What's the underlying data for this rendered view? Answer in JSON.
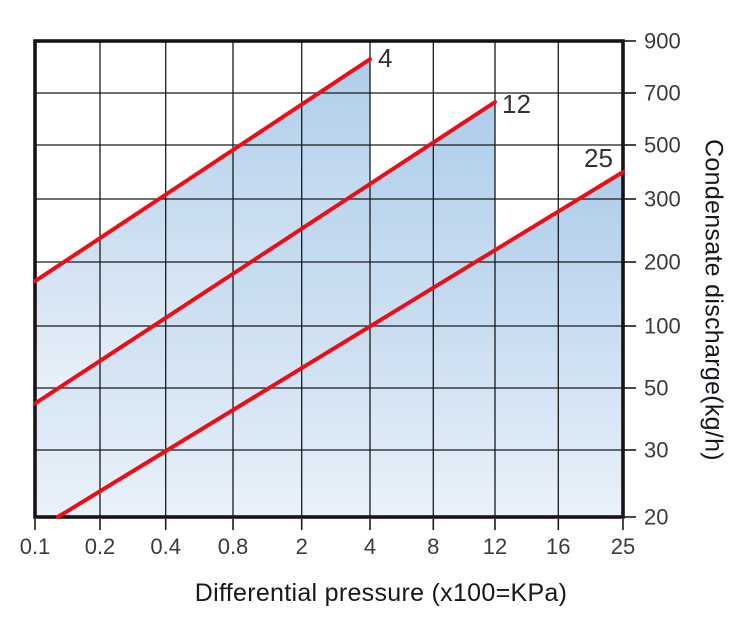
{
  "chart_data": {
    "type": "line",
    "title": "",
    "xlabel": "Differential pressure (x100=KPa)",
    "ylabel": "Condensate discharge(kg/h)",
    "x_ticks": [
      0.1,
      0.2,
      0.4,
      0.8,
      2,
      4,
      8,
      12,
      16,
      25
    ],
    "x_tick_labels": [
      "0.1",
      "0.2",
      "0.4",
      "0.8",
      "2",
      "4",
      "8",
      "12",
      "16",
      "25"
    ],
    "y_ticks": [
      900,
      700,
      500,
      300,
      200,
      100,
      50,
      30,
      20
    ],
    "y_tick_labels": [
      "900",
      "700",
      "500",
      "300",
      "200",
      "100",
      "50",
      "30",
      "20"
    ],
    "grid": true,
    "axis_note": "quasi-logarithmic axes; one gridline per printed tick, x ticks along bottom, y ticks along right side",
    "legend_position": "labels at upper end of each line",
    "series": [
      {
        "name": "4",
        "label": "4",
        "points": [
          [
            0.1,
            170
          ],
          [
            4,
            830
          ]
        ],
        "filled_below": true
      },
      {
        "name": "12",
        "label": "12",
        "points": [
          [
            0.1,
            45
          ],
          [
            12,
            665
          ]
        ],
        "filled_below": true
      },
      {
        "name": "25",
        "label": "25",
        "points": [
          [
            0.135,
            20
          ],
          [
            25,
            400
          ]
        ],
        "filled_below": true
      }
    ],
    "colors": {
      "line": "#ea0e18",
      "fill_top": "#aecdea",
      "fill_mid": "#cfe1f2",
      "fill_bottom": "#eaf2fb",
      "grid": "#1a1a1a",
      "border": "#1a1315",
      "tick_text": "#3b3b3b",
      "title_text": "#15181c"
    }
  }
}
